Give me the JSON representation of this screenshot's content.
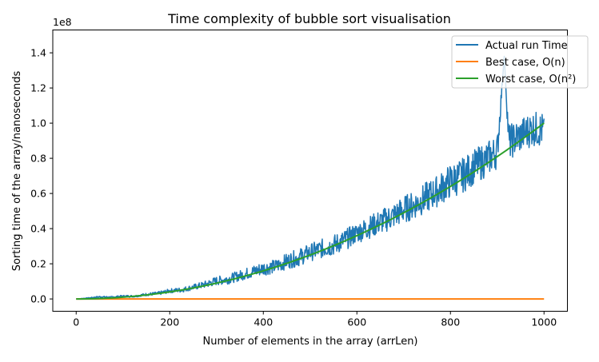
{
  "chart_data": {
    "type": "line",
    "title": "Time complexity of bubble sort visualisation",
    "xlabel": "Number of elements in the array (arrLen)",
    "ylabel": "Sorting time of the array/nanoseconds",
    "y_offset_label": "1e8",
    "xlim": [
      -50,
      1050
    ],
    "ylim": [
      -0.07,
      1.53
    ],
    "y_unit_multiplier": 100000000,
    "x_ticks": [
      0,
      200,
      400,
      600,
      800,
      1000
    ],
    "x_tick_labels": [
      "0",
      "200",
      "400",
      "600",
      "800",
      "1000"
    ],
    "y_ticks": [
      0.0,
      0.2,
      0.4,
      0.6,
      0.8,
      1.0,
      1.2,
      1.4
    ],
    "y_tick_labels": [
      "0.0",
      "0.2",
      "0.4",
      "0.6",
      "0.8",
      "1.0",
      "1.2",
      "1.4"
    ],
    "grid": false,
    "legend_position": "top-right",
    "series": [
      {
        "name": "Actual run Time",
        "color": "#1f77b4",
        "x": [
          0,
          25,
          50,
          75,
          100,
          125,
          150,
          175,
          200,
          225,
          250,
          275,
          300,
          325,
          350,
          375,
          400,
          425,
          450,
          475,
          500,
          525,
          550,
          575,
          600,
          625,
          650,
          675,
          700,
          725,
          750,
          775,
          800,
          825,
          850,
          875,
          900,
          915,
          925,
          950,
          975,
          1000
        ],
        "y": [
          0.0,
          0.005,
          0.012,
          0.01,
          0.015,
          0.015,
          0.025,
          0.03,
          0.045,
          0.05,
          0.065,
          0.08,
          0.1,
          0.11,
          0.13,
          0.15,
          0.17,
          0.18,
          0.21,
          0.23,
          0.26,
          0.28,
          0.3,
          0.33,
          0.37,
          0.4,
          0.43,
          0.46,
          0.5,
          0.53,
          0.57,
          0.61,
          0.66,
          0.69,
          0.74,
          0.78,
          0.83,
          1.38,
          0.88,
          0.92,
          0.96,
          0.95
        ],
        "noise_band": [
          0.0,
          0.002,
          0.004,
          0.004,
          0.006,
          0.006,
          0.008,
          0.01,
          0.012,
          0.014,
          0.016,
          0.02,
          0.025,
          0.028,
          0.03,
          0.035,
          0.04,
          0.04,
          0.045,
          0.05,
          0.05,
          0.055,
          0.06,
          0.06,
          0.06,
          0.065,
          0.07,
          0.075,
          0.08,
          0.08,
          0.09,
          0.09,
          0.1,
          0.1,
          0.1,
          0.1,
          0.1,
          0.0,
          0.1,
          0.1,
          0.1,
          0.1
        ]
      },
      {
        "name": "Best case, O(n)",
        "color": "#ff7f0e",
        "x": [
          0,
          1000
        ],
        "y": [
          0.0,
          1e-05
        ]
      },
      {
        "name": "Worst case, O(n²)",
        "color": "#2ca02c",
        "function": "quadratic",
        "x": [
          0,
          1000
        ],
        "y": [
          0.0,
          1.0
        ]
      }
    ]
  }
}
